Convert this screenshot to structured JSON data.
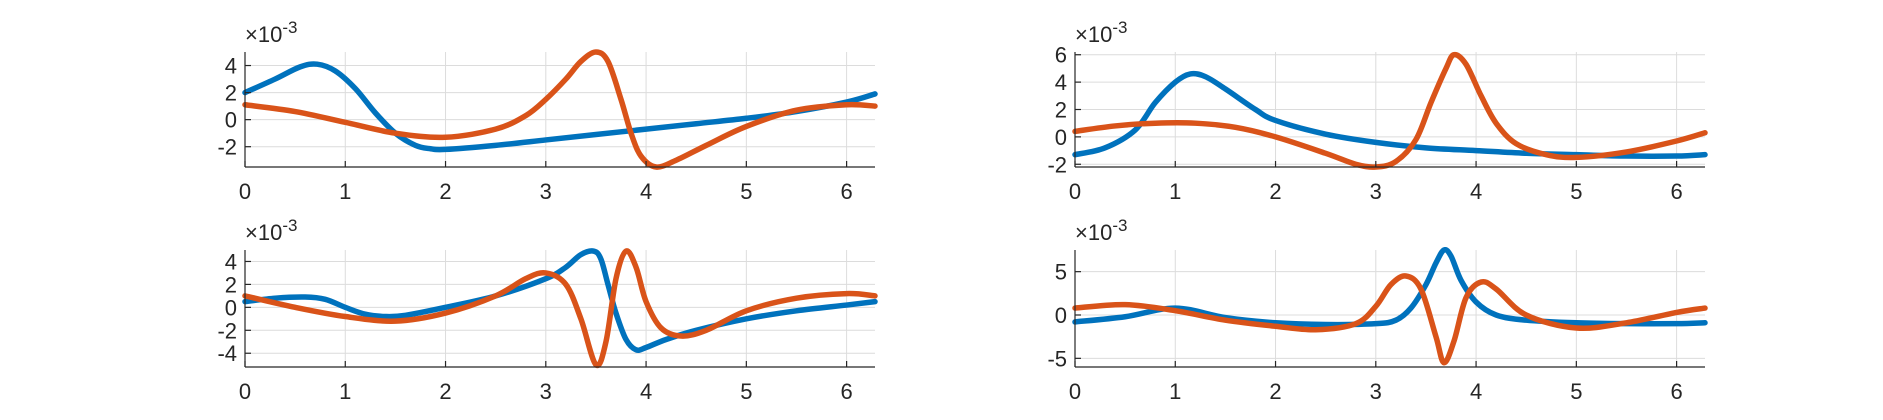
{
  "colors": {
    "series1": "#0072BD",
    "series2": "#D95319",
    "axis": "#262626",
    "grid": "#dcdcdc"
  },
  "chart_data": [
    {
      "type": "line",
      "grid": true,
      "exponent_label": "×10",
      "exponent_power": "-3",
      "xlim": [
        0,
        6.2832
      ],
      "ylim": [
        -3.5,
        5
      ],
      "xticks": [
        0,
        1,
        2,
        3,
        4,
        5,
        6
      ],
      "yticks": [
        -2,
        0,
        2,
        4
      ],
      "series": [
        {
          "color": "#0072BD",
          "x": [
            0,
            0.3,
            0.55,
            0.72,
            0.9,
            1.1,
            1.3,
            1.5,
            1.7,
            1.85,
            2.0,
            2.5,
            3.0,
            3.5,
            4.0,
            4.5,
            5.0,
            5.5,
            6.0,
            6.2832
          ],
          "y": [
            2.0,
            3.0,
            3.9,
            4.1,
            3.6,
            2.3,
            0.5,
            -1.0,
            -1.9,
            -2.15,
            -2.2,
            -1.9,
            -1.5,
            -1.1,
            -0.7,
            -0.3,
            0.1,
            0.6,
            1.3,
            1.9
          ]
        },
        {
          "color": "#D95319",
          "x": [
            0,
            0.5,
            1.0,
            1.5,
            2.0,
            2.5,
            2.8,
            3.0,
            3.2,
            3.35,
            3.5,
            3.62,
            3.75,
            3.85,
            3.95,
            4.1,
            4.3,
            4.6,
            5.0,
            5.5,
            6.0,
            6.2832
          ],
          "y": [
            1.1,
            0.6,
            -0.2,
            -1.0,
            -1.3,
            -0.7,
            0.3,
            1.5,
            3.0,
            4.3,
            5.0,
            4.3,
            1.5,
            -1.0,
            -2.7,
            -3.5,
            -3.0,
            -1.9,
            -0.5,
            0.7,
            1.1,
            1.0
          ]
        }
      ]
    },
    {
      "type": "line",
      "grid": true,
      "exponent_label": "×10",
      "exponent_power": "-3",
      "xlim": [
        0,
        6.2832
      ],
      "ylim": [
        -2.2,
        6.2
      ],
      "xticks": [
        0,
        1,
        2,
        3,
        4,
        5,
        6
      ],
      "yticks": [
        -2,
        0,
        2,
        4,
        6
      ],
      "series": [
        {
          "color": "#0072BD",
          "x": [
            0,
            0.3,
            0.6,
            0.8,
            1.0,
            1.15,
            1.3,
            1.5,
            1.8,
            2.0,
            2.5,
            3.0,
            3.5,
            4.0,
            4.5,
            5.0,
            5.5,
            6.0,
            6.2832
          ],
          "y": [
            -1.3,
            -0.8,
            0.5,
            2.5,
            4.0,
            4.6,
            4.4,
            3.5,
            2.0,
            1.2,
            0.2,
            -0.4,
            -0.8,
            -1.0,
            -1.2,
            -1.3,
            -1.4,
            -1.4,
            -1.3
          ]
        },
        {
          "color": "#D95319",
          "x": [
            0,
            0.4,
            0.8,
            1.2,
            1.6,
            2.0,
            2.5,
            2.8,
            3.0,
            3.2,
            3.4,
            3.55,
            3.7,
            3.78,
            3.9,
            4.05,
            4.2,
            4.4,
            4.7,
            5.0,
            5.5,
            6.0,
            6.2832
          ],
          "y": [
            0.4,
            0.8,
            1.0,
            1.0,
            0.7,
            0.0,
            -1.2,
            -2.0,
            -2.2,
            -1.8,
            -0.2,
            2.5,
            5.0,
            6.0,
            5.3,
            3.0,
            1.0,
            -0.5,
            -1.3,
            -1.5,
            -1.1,
            -0.3,
            0.3
          ]
        }
      ]
    },
    {
      "type": "line",
      "grid": true,
      "exponent_label": "×10",
      "exponent_power": "-3",
      "xlim": [
        0,
        6.2832
      ],
      "ylim": [
        -5.2,
        5
      ],
      "xticks": [
        0,
        1,
        2,
        3,
        4,
        5,
        6
      ],
      "yticks": [
        -4,
        -2,
        0,
        2,
        4
      ],
      "series": [
        {
          "color": "#0072BD",
          "x": [
            0,
            0.3,
            0.6,
            0.8,
            1.0,
            1.2,
            1.4,
            1.6,
            2.0,
            2.5,
            3.0,
            3.2,
            3.35,
            3.48,
            3.55,
            3.62,
            3.7,
            3.8,
            3.9,
            4.0,
            4.2,
            4.5,
            5.0,
            5.5,
            6.0,
            6.2832
          ],
          "y": [
            0.5,
            0.8,
            0.9,
            0.7,
            0.0,
            -0.6,
            -0.8,
            -0.7,
            0.0,
            1.0,
            2.5,
            3.5,
            4.6,
            4.9,
            4.2,
            2.0,
            -0.5,
            -2.8,
            -3.7,
            -3.5,
            -2.8,
            -2.0,
            -1.0,
            -0.3,
            0.2,
            0.5
          ]
        },
        {
          "color": "#D95319",
          "x": [
            0,
            0.5,
            1.0,
            1.5,
            2.0,
            2.5,
            2.8,
            3.0,
            3.2,
            3.35,
            3.5,
            3.6,
            3.7,
            3.8,
            3.9,
            4.0,
            4.15,
            4.35,
            4.6,
            5.0,
            5.5,
            6.0,
            6.2832
          ],
          "y": [
            1.0,
            0.0,
            -0.8,
            -1.2,
            -0.5,
            1.0,
            2.5,
            3.0,
            2.0,
            -1.0,
            -5.0,
            -3.0,
            2.5,
            4.9,
            3.5,
            0.5,
            -1.8,
            -2.5,
            -2.0,
            -0.3,
            0.8,
            1.2,
            1.0
          ]
        }
      ]
    },
    {
      "type": "line",
      "grid": true,
      "exponent_label": "×10",
      "exponent_power": "-3",
      "xlim": [
        0,
        6.2832
      ],
      "ylim": [
        -6,
        7.5
      ],
      "xticks": [
        0,
        1,
        2,
        3,
        4,
        5,
        6
      ],
      "yticks": [
        -5,
        0,
        5
      ],
      "series": [
        {
          "color": "#0072BD",
          "x": [
            0,
            0.5,
            1.0,
            1.5,
            2.0,
            2.5,
            3.0,
            3.2,
            3.35,
            3.5,
            3.6,
            3.68,
            3.75,
            3.85,
            4.0,
            4.2,
            4.5,
            5.0,
            5.5,
            6.0,
            6.2832
          ],
          "y": [
            -0.8,
            -0.2,
            0.8,
            -0.3,
            -0.9,
            -1.1,
            -1.0,
            -0.6,
            0.8,
            3.5,
            6.0,
            7.5,
            6.8,
            4.0,
            1.5,
            0.0,
            -0.6,
            -0.9,
            -1.0,
            -1.0,
            -0.9
          ]
        },
        {
          "color": "#D95319",
          "x": [
            0,
            0.5,
            1.0,
            1.5,
            2.0,
            2.4,
            2.8,
            3.0,
            3.15,
            3.3,
            3.45,
            3.6,
            3.68,
            3.78,
            3.9,
            4.05,
            4.2,
            4.5,
            5.0,
            5.5,
            6.0,
            6.2832
          ],
          "y": [
            0.8,
            1.2,
            0.5,
            -0.6,
            -1.3,
            -1.7,
            -1.0,
            1.0,
            3.5,
            4.5,
            3.0,
            -2.5,
            -5.5,
            -3.0,
            2.0,
            3.8,
            3.0,
            0.0,
            -1.5,
            -0.9,
            0.3,
            0.8
          ]
        }
      ]
    }
  ]
}
